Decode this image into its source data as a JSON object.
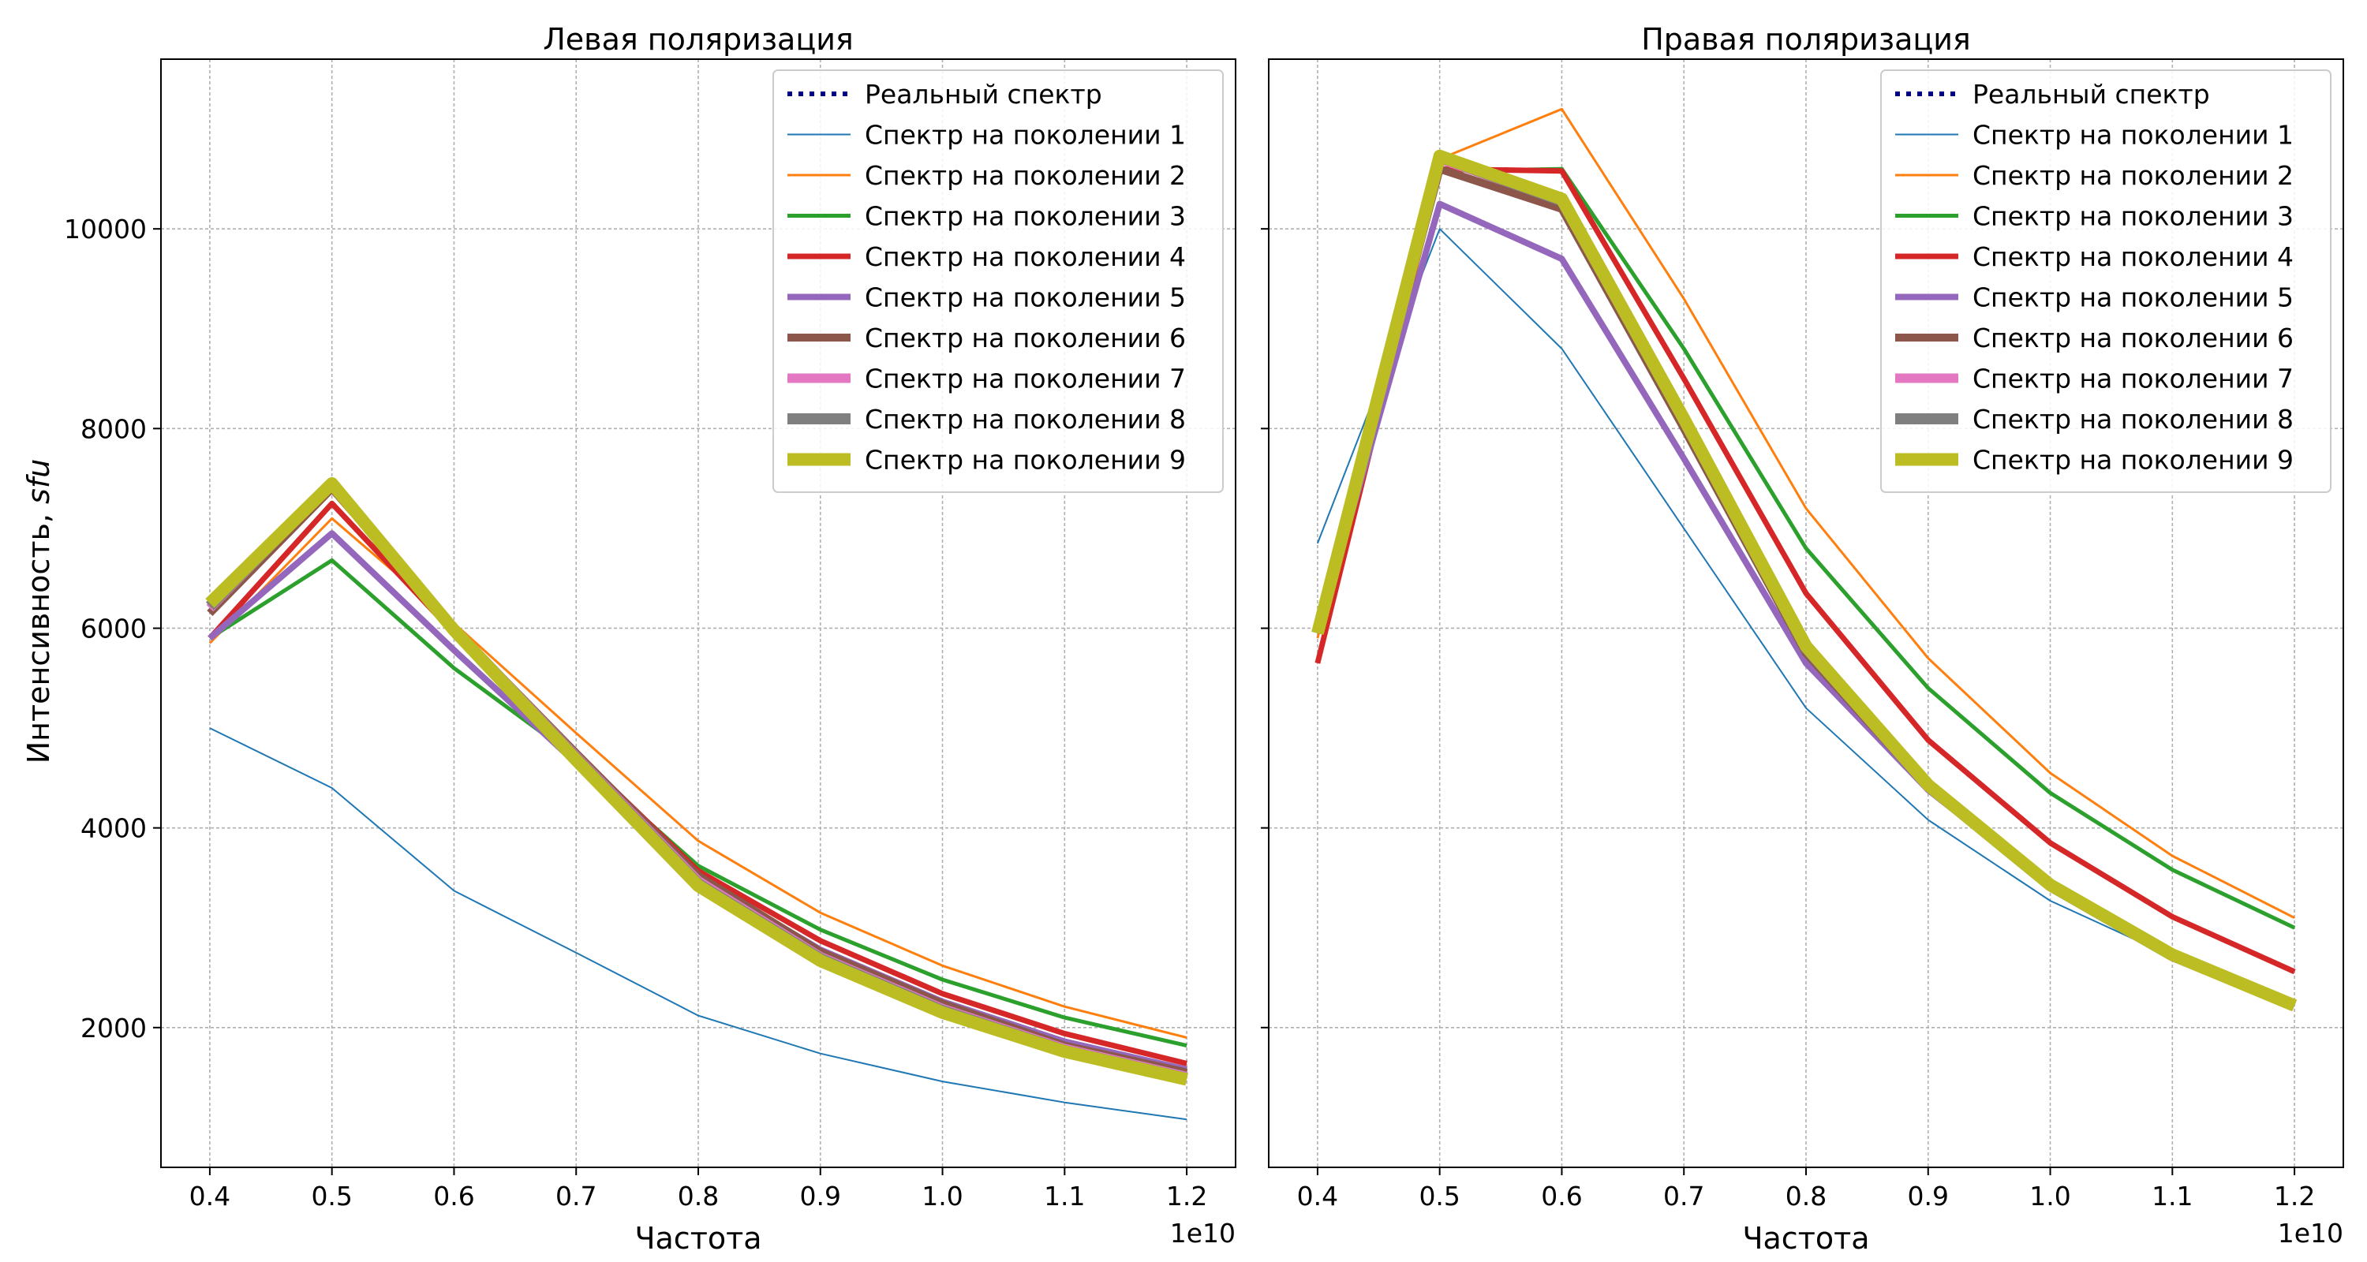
{
  "figure": {
    "ylabel": "Интенсивность, ",
    "ylabel_italic": "sfu"
  },
  "chart_data": [
    {
      "type": "line",
      "title": "Левая поляризация",
      "xlabel": "Частота",
      "x_offset_label": "1e10",
      "x": [
        0.4,
        0.5,
        0.6,
        0.7,
        0.8,
        0.9,
        1.0,
        1.1,
        1.2
      ],
      "xlim": [
        0.36,
        1.24
      ],
      "ylim": [
        600,
        11700
      ],
      "xticks": [
        0.4,
        0.5,
        0.6,
        0.7,
        0.8,
        0.9,
        1.0,
        1.1,
        1.2
      ],
      "xtick_labels": [
        "0.4",
        "0.5",
        "0.6",
        "0.7",
        "0.8",
        "0.9",
        "1.0",
        "1.1",
        "1.2"
      ],
      "yticks": [
        2000,
        4000,
        6000,
        8000,
        10000
      ],
      "ytick_labels": [
        "2000",
        "4000",
        "6000",
        "8000",
        "10000"
      ],
      "grid": true,
      "legend_position": "top-right",
      "series": [
        {
          "name": "Реальный спектр",
          "color": "#000080",
          "style": "dotted",
          "values": null
        },
        {
          "name": "Спектр на поколении 1",
          "color": "#1f77b4",
          "style": "solid",
          "values": [
            5000,
            4400,
            3370,
            2750,
            2120,
            1740,
            1460,
            1250,
            1080
          ]
        },
        {
          "name": "Спектр на поколении 2",
          "color": "#ff7f0e",
          "style": "solid",
          "values": [
            5850,
            7100,
            6050,
            4950,
            3870,
            3150,
            2620,
            2210,
            1900
          ]
        },
        {
          "name": "Спектр на поколении 3",
          "color": "#2ca02c",
          "style": "solid",
          "values": [
            5900,
            6680,
            5600,
            4700,
            3620,
            2980,
            2480,
            2100,
            1820
          ]
        },
        {
          "name": "Спектр на поколении 4",
          "color": "#d62728",
          "style": "solid",
          "values": [
            5900,
            7250,
            5950,
            4750,
            3570,
            2870,
            2340,
            1940,
            1640
          ]
        },
        {
          "name": "Спектр на поколении 5",
          "color": "#9467bd",
          "style": "solid",
          "values": [
            5900,
            6950,
            5780,
            4650,
            3500,
            2780,
            2260,
            1860,
            1580
          ]
        },
        {
          "name": "Спектр на поколении 6",
          "color": "#8c564b",
          "style": "solid",
          "values": [
            6150,
            7400,
            6000,
            4750,
            3520,
            2760,
            2240,
            1820,
            1550
          ]
        },
        {
          "name": "Спектр на поколении 7",
          "color": "#e377c2",
          "style": "solid",
          "values": [
            6200,
            7450,
            6000,
            4720,
            3470,
            2710,
            2190,
            1790,
            1510
          ]
        },
        {
          "name": "Спектр на поколении 8",
          "color": "#7f7f7f",
          "style": "solid",
          "values": [
            6220,
            7450,
            5990,
            4700,
            3440,
            2690,
            2170,
            1770,
            1490
          ]
        },
        {
          "name": "Спектр на поколении 9",
          "color": "#bcbd22",
          "style": "solid",
          "values": [
            6250,
            7450,
            5980,
            4680,
            3420,
            2670,
            2150,
            1760,
            1480
          ]
        }
      ]
    },
    {
      "type": "line",
      "title": "Правая поляризация",
      "xlabel": "Частота",
      "x_offset_label": "1e10",
      "x": [
        0.4,
        0.5,
        0.6,
        0.7,
        0.8,
        0.9,
        1.0,
        1.1,
        1.2
      ],
      "xlim": [
        0.36,
        1.24
      ],
      "ylim": [
        600,
        11700
      ],
      "xticks": [
        0.4,
        0.5,
        0.6,
        0.7,
        0.8,
        0.9,
        1.0,
        1.1,
        1.2
      ],
      "xtick_labels": [
        "0.4",
        "0.5",
        "0.6",
        "0.7",
        "0.8",
        "0.9",
        "1.0",
        "1.1",
        "1.2"
      ],
      "yticks": [
        2000,
        4000,
        6000,
        8000,
        10000
      ],
      "ytick_labels": [],
      "grid": true,
      "legend_position": "top-right",
      "series": [
        {
          "name": "Реальный спектр",
          "color": "#000080",
          "style": "dotted",
          "values": null
        },
        {
          "name": "Спектр на поколении 1",
          "color": "#1f77b4",
          "style": "solid",
          "values": [
            6850,
            10000,
            8800,
            7000,
            5200,
            4080,
            3270,
            2710,
            2280
          ]
        },
        {
          "name": "Спектр на поколении 2",
          "color": "#ff7f0e",
          "style": "solid",
          "values": [
            5900,
            10700,
            11200,
            9300,
            7200,
            5700,
            4550,
            3720,
            3100
          ]
        },
        {
          "name": "Спектр на поколении 3",
          "color": "#2ca02c",
          "style": "solid",
          "values": [
            5950,
            10580,
            10600,
            8800,
            6800,
            5400,
            4350,
            3580,
            3000
          ]
        },
        {
          "name": "Спектр на поколении 4",
          "color": "#d62728",
          "style": "solid",
          "values": [
            5650,
            10600,
            10580,
            8500,
            6350,
            4880,
            3850,
            3110,
            2560
          ]
        },
        {
          "name": "Спектр на поколении 5",
          "color": "#9467bd",
          "style": "solid",
          "values": [
            5950,
            10250,
            9700,
            7700,
            5650,
            4380,
            3420,
            2720,
            2220
          ]
        },
        {
          "name": "Спектр на поколении 6",
          "color": "#8c564b",
          "style": "solid",
          "values": [
            5950,
            10600,
            10200,
            8000,
            5750,
            4400,
            3420,
            2720,
            2230
          ]
        },
        {
          "name": "Спектр на поколении 7",
          "color": "#e377c2",
          "style": "solid",
          "values": [
            5950,
            10700,
            10280,
            8080,
            5800,
            4420,
            3420,
            2720,
            2220
          ]
        },
        {
          "name": "Спектр на поколении 8",
          "color": "#7f7f7f",
          "style": "solid",
          "values": [
            5950,
            10720,
            10280,
            8080,
            5800,
            4420,
            3420,
            2720,
            2220
          ]
        },
        {
          "name": "Спектр на поколении 9",
          "color": "#bcbd22",
          "style": "solid",
          "values": [
            5950,
            10730,
            10300,
            8100,
            5820,
            4430,
            3430,
            2730,
            2220
          ]
        }
      ]
    }
  ]
}
